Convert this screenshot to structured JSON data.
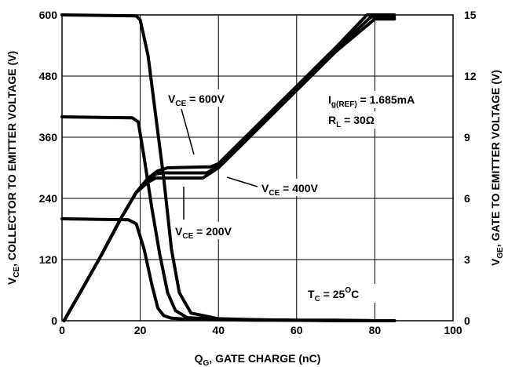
{
  "chart_data": {
    "type": "line",
    "xlabel": {
      "main": "Q",
      "sub": "G",
      "rest": ", GATE CHARGE (nC)"
    },
    "ylabel_left": {
      "main": "V",
      "sub": "CE",
      "rest": ", COLLECTOR TO EMITTER VOLTAGE (V)"
    },
    "ylabel_right": {
      "main": "V",
      "sub": "GE",
      "rest": ", GATE TO EMITTER VOLTAGE (V)"
    },
    "xlim": [
      0,
      100
    ],
    "ylim_left": [
      0,
      600
    ],
    "ylim_right": [
      0,
      15
    ],
    "x_ticks": [
      "0",
      "20",
      "40",
      "60",
      "80",
      "100"
    ],
    "y_left_ticks": [
      "0",
      "120",
      "240",
      "360",
      "480",
      "600"
    ],
    "y_right_ticks": [
      "0",
      "3",
      "6",
      "9",
      "12",
      "15"
    ],
    "grid": true,
    "series": [
      {
        "name": "V_CE = 600V",
        "axis": "left",
        "x": [
          0,
          19,
          20,
          22,
          24,
          26,
          28,
          30,
          33,
          40,
          50,
          60,
          70,
          80,
          85
        ],
        "y": [
          600,
          598,
          590,
          520,
          400,
          280,
          140,
          55,
          15,
          4,
          2,
          1,
          1,
          0,
          0
        ]
      },
      {
        "name": "V_CE = 400V",
        "axis": "left",
        "x": [
          0,
          18,
          19.5,
          21,
          23,
          25,
          27,
          29,
          32,
          40,
          50,
          60,
          70,
          80,
          85
        ],
        "y": [
          400,
          398,
          390,
          320,
          220,
          130,
          55,
          20,
          6,
          3,
          2,
          1,
          1,
          0,
          0
        ]
      },
      {
        "name": "V_CE = 200V",
        "axis": "left",
        "x": [
          0,
          17,
          19,
          21,
          23,
          24.5,
          26,
          28,
          32,
          40,
          50,
          60,
          70,
          80,
          85
        ],
        "y": [
          200,
          198,
          190,
          140,
          70,
          25,
          10,
          5,
          3,
          2,
          1,
          1,
          0,
          0,
          0
        ]
      },
      {
        "name": "V_GE (V_CE = 200V)",
        "axis": "right",
        "x": [
          0.5,
          5,
          10,
          15,
          19,
          22,
          24,
          25.5,
          36,
          40,
          50,
          60,
          70,
          80,
          85
        ],
        "y": [
          0,
          1.5,
          3.2,
          5.0,
          6.3,
          6.8,
          7.0,
          7.0,
          7.0,
          7.5,
          9.4,
          11.3,
          13.2,
          14.8,
          14.8
        ]
      },
      {
        "name": "V_GE (V_CE = 400V)",
        "axis": "right",
        "x": [
          0.5,
          5,
          10,
          15,
          19,
          22,
          24,
          26,
          37,
          40,
          50,
          60,
          70,
          79,
          85
        ],
        "y": [
          0,
          1.5,
          3.2,
          5.0,
          6.3,
          6.9,
          7.2,
          7.25,
          7.25,
          7.6,
          9.5,
          11.4,
          13.3,
          14.9,
          14.9
        ]
      },
      {
        "name": "V_GE (V_CE = 600V)",
        "axis": "right",
        "x": [
          0.5,
          5,
          10,
          15,
          19,
          22,
          24.5,
          27,
          38,
          40,
          50,
          60,
          70,
          78,
          85
        ],
        "y": [
          0,
          1.5,
          3.2,
          5.0,
          6.3,
          7.0,
          7.35,
          7.5,
          7.55,
          7.7,
          9.6,
          11.5,
          13.4,
          15.0,
          15.0
        ]
      }
    ],
    "annotations": {
      "vce600": {
        "main": "V",
        "sub": "CE",
        "rest": " = 600V"
      },
      "vce400": {
        "main": "V",
        "sub": "CE",
        "rest": " = 400V"
      },
      "vce200": {
        "main": "V",
        "sub": "CE",
        "rest": " = 200V"
      },
      "ig": {
        "main": "I",
        "sub": "g(REF)",
        "rest": " = 1.685mA"
      },
      "rl": {
        "main": "R",
        "sub": "L",
        "rest": " = 30Ω"
      },
      "tc": {
        "main": "T",
        "sub": "C",
        "mid": " = 25",
        "sup": "O",
        "rest": "C"
      }
    }
  }
}
